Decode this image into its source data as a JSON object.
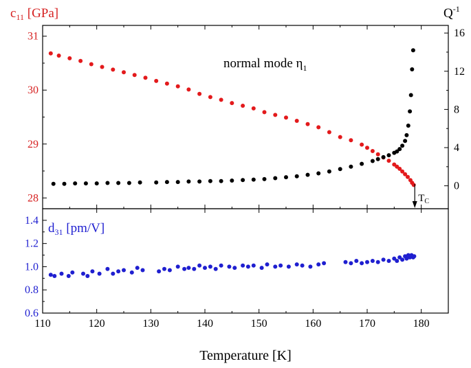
{
  "chart_data": [
    {
      "type": "scatter",
      "panel": "top",
      "left_axis_label": {
        "main": "c",
        "sub": "11",
        "rest": " [GPa]"
      },
      "right_axis_label": {
        "main": "Q",
        "sup": "-1"
      },
      "annotation": {
        "main": "normal mode η",
        "sub": "1"
      },
      "tc_label": {
        "main": "T",
        "sub": "C"
      },
      "tc_value": 178.8,
      "x_range": [
        110,
        185
      ],
      "left_ylim": [
        27.8,
        31.2
      ],
      "right_ylim": [
        -2.4,
        16.8
      ],
      "left_ticks": [
        "28",
        "29",
        "30",
        "31"
      ],
      "right_ticks": [
        "0",
        "4",
        "8",
        "12",
        "16"
      ],
      "series": [
        {
          "axis": "left",
          "color": "#e31a1c",
          "x": [
            111.5,
            113.0,
            115.0,
            117.0,
            119.0,
            121.0,
            123.0,
            125.0,
            127.0,
            129.0,
            131.0,
            133.0,
            135.0,
            137.0,
            139.0,
            141.0,
            143.0,
            145.0,
            147.0,
            149.0,
            151.0,
            153.0,
            155.0,
            157.0,
            159.0,
            161.0,
            163.0,
            165.0,
            167.0,
            169.0,
            170.0,
            171.0,
            172.0,
            173.0,
            174.0,
            175.0,
            175.5,
            176.0,
            176.5,
            177.0,
            177.5,
            178.0,
            178.3,
            178.6
          ],
          "values": [
            30.68,
            30.64,
            30.59,
            30.54,
            30.48,
            30.43,
            30.38,
            30.33,
            30.28,
            30.23,
            30.17,
            30.12,
            30.07,
            30.01,
            29.93,
            29.87,
            29.82,
            29.76,
            29.71,
            29.66,
            29.59,
            29.54,
            29.49,
            29.43,
            29.37,
            29.31,
            29.22,
            29.13,
            29.07,
            28.99,
            28.93,
            28.87,
            28.81,
            28.75,
            28.69,
            28.62,
            28.58,
            28.54,
            28.49,
            28.44,
            28.39,
            28.33,
            28.28,
            28.24
          ]
        },
        {
          "axis": "right",
          "color": "#000000",
          "x": [
            112.0,
            114.0,
            116.0,
            118.0,
            120.0,
            122.0,
            124.0,
            126.0,
            128.0,
            131.0,
            133.0,
            135.0,
            137.0,
            139.0,
            141.0,
            143.0,
            145.0,
            147.0,
            149.0,
            151.0,
            153.0,
            155.0,
            157.0,
            159.0,
            161.0,
            163.0,
            165.0,
            167.0,
            169.0,
            171.0,
            172.0,
            173.0,
            174.0,
            175.0,
            175.5,
            176.0,
            176.5,
            177.0,
            177.3,
            177.6,
            177.9,
            178.1,
            178.3,
            178.5
          ],
          "values": [
            0.2,
            0.2,
            0.25,
            0.25,
            0.25,
            0.3,
            0.3,
            0.3,
            0.35,
            0.35,
            0.4,
            0.4,
            0.45,
            0.45,
            0.5,
            0.5,
            0.55,
            0.6,
            0.65,
            0.7,
            0.8,
            0.9,
            1.0,
            1.15,
            1.3,
            1.5,
            1.75,
            2.0,
            2.3,
            2.6,
            2.8,
            3.0,
            3.2,
            3.45,
            3.6,
            3.85,
            4.2,
            4.7,
            5.3,
            6.3,
            7.8,
            9.5,
            12.2,
            14.2
          ]
        }
      ]
    },
    {
      "type": "scatter",
      "panel": "bottom",
      "left_axis_label": {
        "main": "d",
        "sub": "31",
        "rest": " [pm/V]"
      },
      "x_label": "Temperature [K]",
      "x_range": [
        110,
        185
      ],
      "x_ticks": [
        "110",
        "120",
        "130",
        "140",
        "150",
        "160",
        "170",
        "180"
      ],
      "ylim": [
        0.6,
        1.5
      ],
      "y_ticks": [
        "0.6",
        "0.8",
        "1.0",
        "1.2",
        "1.4"
      ],
      "series": [
        {
          "color": "#1f1fd0",
          "x": [
            111.5,
            112.2,
            113.5,
            114.8,
            115.5,
            117.5,
            118.3,
            119.2,
            120.5,
            122.0,
            123.0,
            124.0,
            125.0,
            126.5,
            127.5,
            128.5,
            131.5,
            132.5,
            133.5,
            135.0,
            136.2,
            137.0,
            138.0,
            139.0,
            140.0,
            141.0,
            142.0,
            143.0,
            144.5,
            145.5,
            147.0,
            148.0,
            149.0,
            150.5,
            151.5,
            153.0,
            154.0,
            155.5,
            157.0,
            158.0,
            159.5,
            161.0,
            162.0,
            166.0,
            167.0,
            168.0,
            169.0,
            170.0,
            171.0,
            172.0,
            173.0,
            174.0,
            175.0,
            175.5,
            176.0,
            176.5,
            177.0,
            177.3,
            177.6,
            177.9,
            178.2,
            178.5,
            178.7
          ],
          "values": [
            0.93,
            0.92,
            0.94,
            0.92,
            0.95,
            0.94,
            0.92,
            0.96,
            0.94,
            0.98,
            0.94,
            0.96,
            0.97,
            0.95,
            0.99,
            0.97,
            0.96,
            0.98,
            0.97,
            1.0,
            0.98,
            0.99,
            0.98,
            1.01,
            0.99,
            1.0,
            0.98,
            1.01,
            1.0,
            0.99,
            1.01,
            1.0,
            1.01,
            0.99,
            1.02,
            1.0,
            1.01,
            1.0,
            1.02,
            1.01,
            1.0,
            1.02,
            1.03,
            1.04,
            1.03,
            1.05,
            1.03,
            1.04,
            1.05,
            1.04,
            1.06,
            1.05,
            1.07,
            1.05,
            1.08,
            1.06,
            1.09,
            1.07,
            1.1,
            1.08,
            1.1,
            1.08,
            1.09
          ]
        }
      ]
    }
  ]
}
